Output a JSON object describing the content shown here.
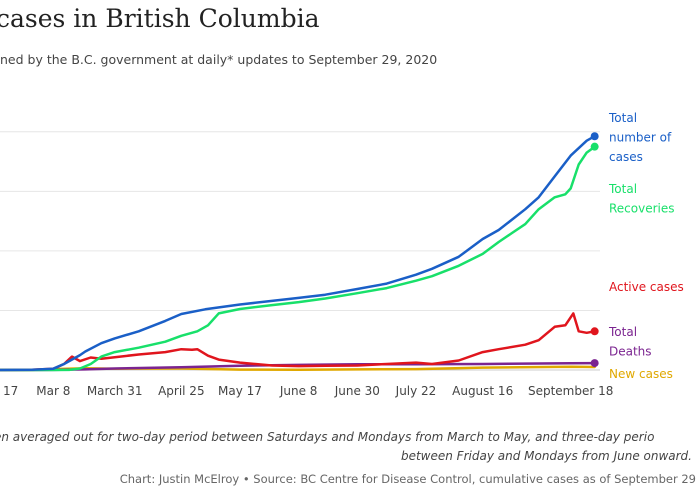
{
  "title": "cases in British Columbia",
  "subtitle": "ned by the B.C. government at daily* updates to September 29, 2020",
  "note_line1": "en averaged out for two-day period between Saturdays and Mondays from March to May, and three-day perio",
  "note_line2": "between Friday and Mondays from June onward.",
  "credit": "Chart: Justin McElroy • Source: BC Centre for Disease Control, cumulative cases as of September 29",
  "colors": {
    "total": "#1a5fc7",
    "recoveries": "#18e06a",
    "active": "#e0151d",
    "deaths": "#7b2490",
    "new": "#e0a800",
    "grid": "#e6e6e6"
  },
  "chart_data": {
    "type": "line",
    "x_tick_labels": [
      "17",
      "Mar 8",
      "March 31",
      "April 25",
      "May 17",
      "June 8",
      "June 30",
      "July 22",
      "August 16",
      "September 18"
    ],
    "x_tick_days": [
      -8,
      8,
      31,
      56,
      78,
      100,
      122,
      144,
      169,
      202
    ],
    "x_range_days": [
      -12,
      213
    ],
    "x_day_zero": "2020-03-01",
    "ylim": [
      0,
      9000
    ],
    "y_gridlines": [
      0,
      2000,
      4000,
      6000,
      8000
    ],
    "grid": true,
    "legend": "direct labels at line ends, right",
    "series": [
      {
        "name": "Total number of cases",
        "label_lines": [
          "Total",
          "number of",
          "cases"
        ],
        "color_key": "total",
        "end_marker": true,
        "x": [
          -12,
          0,
          8,
          12,
          18,
          20,
          26,
          31,
          40,
          50,
          56,
          65,
          78,
          90,
          100,
          110,
          122,
          133,
          144,
          150,
          160,
          169,
          175,
          185,
          190,
          196,
          202,
          208,
          211
        ],
        "y": [
          0,
          10,
          45,
          200,
          500,
          620,
          900,
          1060,
          1300,
          1650,
          1880,
          2040,
          2200,
          2320,
          2420,
          2530,
          2720,
          2900,
          3200,
          3400,
          3800,
          4400,
          4700,
          5400,
          5800,
          6500,
          7200,
          7700,
          7850
        ]
      },
      {
        "name": "Total Recoveries",
        "label_lines": [
          "Total",
          "Recoveries"
        ],
        "color_key": "recoveries",
        "end_marker": true,
        "x": [
          -12,
          0,
          8,
          14,
          18,
          22,
          26,
          31,
          40,
          50,
          56,
          62,
          66,
          70,
          78,
          90,
          100,
          110,
          122,
          133,
          144,
          150,
          160,
          169,
          175,
          180,
          185,
          190,
          196,
          200,
          202,
          205,
          208,
          211
        ],
        "y": [
          0,
          0,
          0,
          5,
          50,
          200,
          450,
          600,
          750,
          950,
          1150,
          1300,
          1500,
          1900,
          2050,
          2180,
          2280,
          2400,
          2580,
          2750,
          3000,
          3150,
          3500,
          3900,
          4300,
          4600,
          4900,
          5400,
          5800,
          5900,
          6100,
          6900,
          7300,
          7500
        ]
      },
      {
        "name": "Active cases",
        "label_lines": [
          "Active cases"
        ],
        "color_key": "active",
        "end_marker": true,
        "x": [
          -12,
          0,
          8,
          12,
          15,
          18,
          22,
          26,
          31,
          40,
          50,
          56,
          60,
          62,
          66,
          70,
          78,
          90,
          100,
          110,
          122,
          133,
          144,
          150,
          160,
          169,
          175,
          185,
          190,
          196,
          200,
          203,
          205,
          208,
          211
        ],
        "y": [
          0,
          10,
          40,
          200,
          450,
          300,
          420,
          380,
          430,
          520,
          600,
          700,
          680,
          700,
          480,
          350,
          250,
          150,
          130,
          140,
          150,
          200,
          250,
          200,
          320,
          600,
          700,
          850,
          1000,
          1450,
          1500,
          1900,
          1300,
          1250,
          1300
        ]
      },
      {
        "name": "Total Deaths",
        "label_lines": [
          "Total",
          "Deaths"
        ],
        "color_key": "deaths",
        "end_marker": true,
        "x": [
          -12,
          0,
          8,
          20,
          31,
          56,
          78,
          100,
          122,
          144,
          169,
          202,
          211
        ],
        "y": [
          0,
          0,
          5,
          20,
          50,
          95,
          145,
          170,
          190,
          195,
          200,
          230,
          232
        ]
      },
      {
        "name": "New cases",
        "label_lines": [
          "New cases"
        ],
        "color_key": "new",
        "end_marker": false,
        "x": [
          -12,
          0,
          8,
          20,
          31,
          56,
          78,
          100,
          122,
          144,
          169,
          202,
          211
        ],
        "y": [
          0,
          5,
          30,
          60,
          45,
          50,
          15,
          10,
          20,
          30,
          80,
          110,
          100
        ]
      }
    ]
  }
}
